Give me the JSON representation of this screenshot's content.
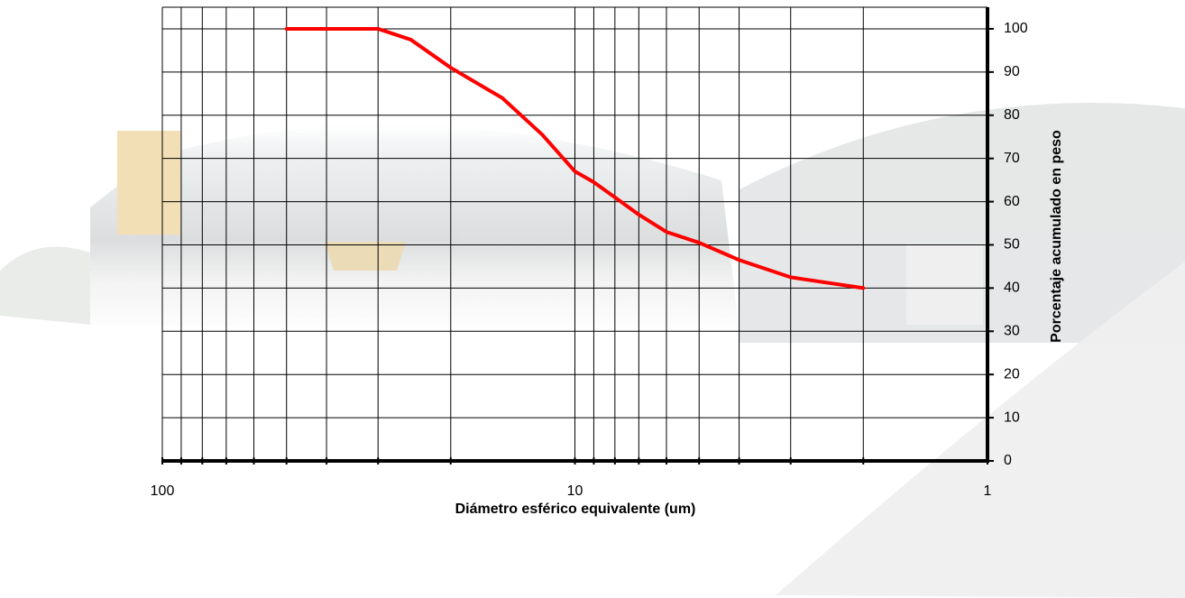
{
  "chart_data": {
    "type": "line",
    "xlog": true,
    "xreverse": true,
    "xlabel": "Diámetro esférico equivalente (um)",
    "ylabel": "Porcentaje acumulado en peso",
    "xlim": [
      100,
      1
    ],
    "ylim": [
      0,
      105
    ],
    "xticks": [
      100,
      10,
      1
    ],
    "xminor": [
      90,
      80,
      70,
      60,
      50,
      40,
      30,
      20,
      9,
      8,
      7,
      6,
      5,
      4,
      3,
      2
    ],
    "yticks": [
      0,
      10,
      20,
      30,
      40,
      50,
      60,
      70,
      80,
      90,
      100
    ],
    "grid": true,
    "series": [
      {
        "color": "#ff0000",
        "x": [
          50,
          40,
          30,
          25,
          20,
          15,
          12,
          10,
          9,
          8,
          7,
          6,
          5,
          4,
          3,
          2
        ],
        "values": [
          100,
          100,
          100,
          97.5,
          91,
          84,
          75.5,
          67,
          64.5,
          61,
          57,
          53,
          50.5,
          46.5,
          42.5,
          40
        ]
      }
    ]
  }
}
